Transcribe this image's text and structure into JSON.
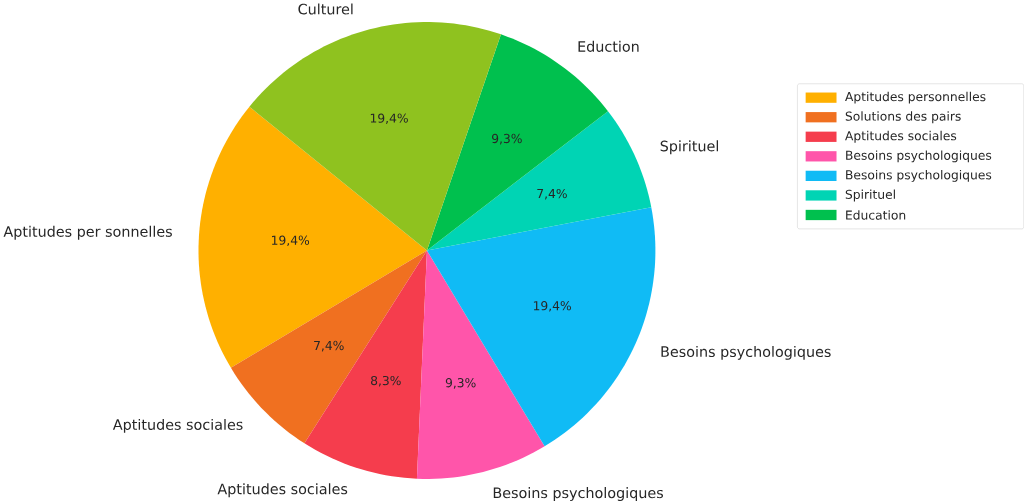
{
  "chart_data": {
    "type": "pie",
    "categories": [
      "Aptitudes per sonnelles",
      "Aptitudes sociales",
      "Aptitudes sociales",
      "Besoins psychologiques",
      "Besoins psychologiques",
      "Spirituel",
      "Eduction",
      "Culturel"
    ],
    "values": [
      19.4,
      7.4,
      8.3,
      9.3,
      19.4,
      7.4,
      9.3,
      19.4
    ],
    "value_labels": [
      "19,4%",
      "7,4%",
      "8,3%",
      "9,3%",
      "19,4%",
      "7,4%",
      "9,3%",
      "19,4%"
    ],
    "colors": [
      "#ffb000",
      "#f07020",
      "#f53d4d",
      "#ff55aa",
      "#10bbf5",
      "#00d4b4",
      "#00c04e",
      "#8fc21f"
    ],
    "annotations": [
      "Aptitudes personnelles",
      "Solutions des pairs",
      "Aptitudes sociales",
      "Besoins psychologiques",
      "Besoins psychologiques",
      "Spirituel",
      "Education"
    ]
  }
}
